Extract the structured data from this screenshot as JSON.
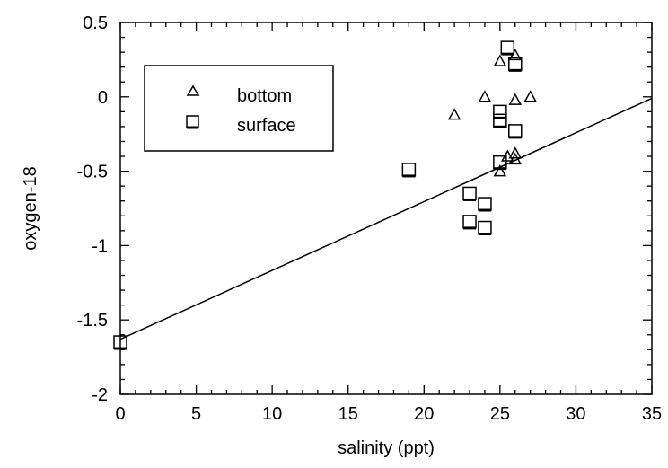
{
  "chart_data": {
    "type": "scatter",
    "title": "",
    "xlabel": "salinity (ppt)",
    "ylabel": "oxygen-18",
    "xlim": [
      0,
      35
    ],
    "ylim": [
      -2,
      0.5
    ],
    "x_ticks": [
      "0",
      "5",
      "10",
      "15",
      "20",
      "25",
      "30",
      "35"
    ],
    "y_ticks": [
      "0.5",
      "0",
      "-0.5",
      "-1",
      "-1.5",
      "-2"
    ],
    "grid": false,
    "legend_position": "top-left",
    "series": [
      {
        "name": "bottom",
        "marker": "triangle",
        "points": [
          {
            "x": 22,
            "y": -0.12
          },
          {
            "x": 24,
            "y": 0.0
          },
          {
            "x": 25,
            "y": 0.24
          },
          {
            "x": 25,
            "y": -0.5
          },
          {
            "x": 25.5,
            "y": -0.4
          },
          {
            "x": 26,
            "y": 0.28
          },
          {
            "x": 26,
            "y": -0.02
          },
          {
            "x": 26,
            "y": -0.38
          },
          {
            "x": 26,
            "y": -0.42
          },
          {
            "x": 27,
            "y": 0.0
          }
        ]
      },
      {
        "name": "surface",
        "marker": "square",
        "points": [
          {
            "x": 0,
            "y": -1.65
          },
          {
            "x": 19,
            "y": -0.49
          },
          {
            "x": 23,
            "y": -0.65
          },
          {
            "x": 23,
            "y": -0.84
          },
          {
            "x": 24,
            "y": -0.72
          },
          {
            "x": 24,
            "y": -0.88
          },
          {
            "x": 25,
            "y": -0.1
          },
          {
            "x": 25,
            "y": -0.16
          },
          {
            "x": 25,
            "y": -0.44
          },
          {
            "x": 25.5,
            "y": 0.33
          },
          {
            "x": 26,
            "y": 0.22
          },
          {
            "x": 26,
            "y": -0.23
          }
        ]
      }
    ],
    "fit_line": {
      "x": [
        0,
        35
      ],
      "y": [
        -1.63,
        -0.01
      ]
    }
  }
}
